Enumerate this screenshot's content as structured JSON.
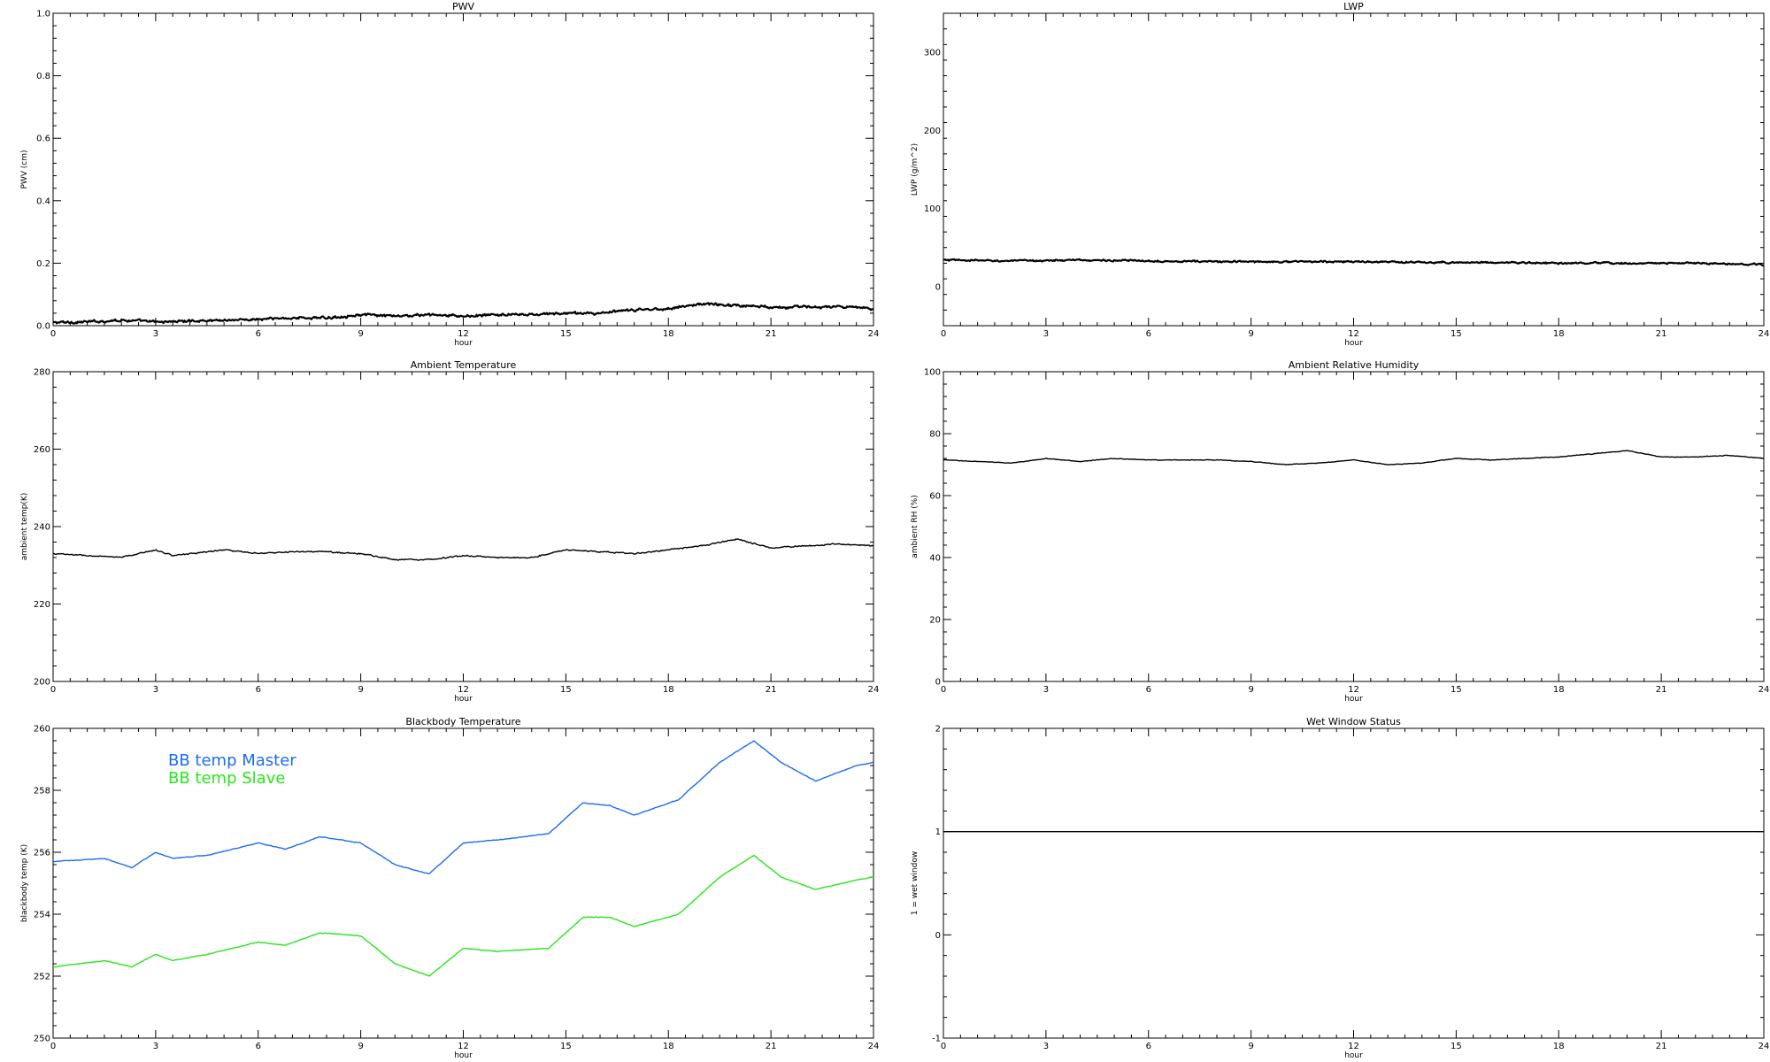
{
  "chart_data": [
    {
      "id": "pwv",
      "type": "line",
      "title": "PWV",
      "xlabel": "hour",
      "ylabel": "PWV (cm)",
      "xlim": [
        0,
        24
      ],
      "ylim": [
        0.0,
        1.0
      ],
      "xticks": [
        0,
        3,
        6,
        9,
        12,
        15,
        18,
        21,
        24
      ],
      "yticks": [
        0.0,
        0.2,
        0.4,
        0.6,
        0.8,
        1.0
      ],
      "ytick_labels": [
        "0.0",
        "0.2",
        "0.4",
        "0.6",
        "0.8",
        "1.0"
      ],
      "grid": false,
      "noise": 0.006,
      "series": [
        {
          "color": "#000000",
          "x": [
            0,
            1,
            2,
            3,
            4,
            5,
            6,
            7,
            8,
            9,
            10,
            11,
            12,
            13,
            14,
            15,
            16,
            17,
            18,
            19,
            20,
            21,
            22,
            23,
            24
          ],
          "y": [
            0.01,
            0.012,
            0.018,
            0.012,
            0.015,
            0.018,
            0.02,
            0.025,
            0.025,
            0.035,
            0.03,
            0.035,
            0.03,
            0.035,
            0.035,
            0.04,
            0.04,
            0.05,
            0.055,
            0.07,
            0.065,
            0.06,
            0.06,
            0.06,
            0.055
          ]
        }
      ]
    },
    {
      "id": "lwp",
      "type": "line",
      "title": "LWP",
      "xlabel": "hour",
      "ylabel": "LWP (g/m^2)",
      "xlim": [
        0,
        24
      ],
      "ylim": [
        -50,
        350
      ],
      "xticks": [
        0,
        3,
        6,
        9,
        12,
        15,
        18,
        21,
        24
      ],
      "yticks": [
        0,
        100,
        200,
        300
      ],
      "ytick_labels": [
        "0",
        "100",
        "200",
        "300"
      ],
      "grid": false,
      "noise": 1.6,
      "series": [
        {
          "color": "#000000",
          "x": [
            0,
            2,
            4,
            6,
            8,
            10,
            12,
            14,
            16,
            18,
            20,
            22,
            24
          ],
          "y": [
            34,
            33,
            34,
            33,
            32,
            32,
            32,
            31,
            31,
            30,
            30,
            30,
            28
          ]
        }
      ]
    },
    {
      "id": "ambient_temp",
      "type": "line",
      "title": "Ambient Temperature",
      "xlabel": "hour",
      "ylabel": "ambient temp(K)",
      "xlim": [
        0,
        24
      ],
      "ylim": [
        200,
        280
      ],
      "xticks": [
        0,
        3,
        6,
        9,
        12,
        15,
        18,
        21,
        24
      ],
      "yticks": [
        200,
        220,
        240,
        260,
        280
      ],
      "ytick_labels": [
        "200",
        "220",
        "240",
        "260",
        "280"
      ],
      "grid": false,
      "noise": 0.25,
      "series": [
        {
          "color": "#000000",
          "x": [
            0,
            1,
            2,
            3,
            3.5,
            4,
            5,
            6,
            7,
            8,
            9,
            10,
            11,
            12,
            13,
            14,
            15,
            16,
            17,
            18,
            19,
            20,
            21,
            22,
            23,
            24
          ],
          "y": [
            233,
            232.5,
            232,
            234,
            232.5,
            233,
            234,
            233,
            233.5,
            233.5,
            233,
            231.5,
            231.5,
            232.5,
            232,
            232,
            234,
            233.5,
            233,
            234,
            235,
            236.8,
            234.5,
            235,
            235.5,
            235
          ]
        }
      ]
    },
    {
      "id": "ambient_rh",
      "type": "line",
      "title": "Ambient Relative Humidity",
      "xlabel": "hour",
      "ylabel": "ambient RH (%)",
      "xlim": [
        0,
        24
      ],
      "ylim": [
        0,
        100
      ],
      "xticks": [
        0,
        3,
        6,
        9,
        12,
        15,
        18,
        21,
        24
      ],
      "yticks": [
        0,
        20,
        40,
        60,
        80,
        100
      ],
      "ytick_labels": [
        "0",
        "20",
        "40",
        "60",
        "80",
        "100"
      ],
      "grid": false,
      "noise": 0.15,
      "series": [
        {
          "color": "#000000",
          "x": [
            0,
            1,
            2,
            3,
            4,
            5,
            6,
            7,
            8,
            9,
            10,
            11,
            12,
            13,
            14,
            15,
            16,
            17,
            18,
            19,
            20,
            21,
            22,
            23,
            24
          ],
          "y": [
            71.5,
            71,
            70.5,
            72,
            71,
            72,
            71.5,
            71.5,
            71.5,
            71,
            70,
            70.5,
            71.5,
            70,
            70.5,
            72,
            71.5,
            72,
            72.5,
            73.5,
            74.5,
            72.5,
            72.5,
            73,
            72
          ]
        }
      ]
    },
    {
      "id": "blackbody_temp",
      "type": "line",
      "title": "Blackbody Temperature",
      "xlabel": "hour",
      "ylabel": "blackbody temp (K)",
      "xlim": [
        0,
        24
      ],
      "ylim": [
        250,
        260
      ],
      "xticks": [
        0,
        3,
        6,
        9,
        12,
        15,
        18,
        21,
        24
      ],
      "yticks": [
        250,
        252,
        254,
        256,
        258,
        260
      ],
      "ytick_labels": [
        "250",
        "252",
        "254",
        "256",
        "258",
        "260"
      ],
      "grid": false,
      "noise": 0.015,
      "legend": {
        "placement": "top-left"
      },
      "series": [
        {
          "name": "BB temp Master",
          "color": "#1c6df0",
          "x": [
            0,
            1.5,
            2.3,
            3,
            3.5,
            4.5,
            6,
            6.8,
            7.8,
            9,
            10,
            11,
            12,
            13,
            14.5,
            15.5,
            16.3,
            17,
            18.3,
            19.5,
            20.5,
            21.3,
            22.3,
            23.5,
            24
          ],
          "y": [
            255.7,
            255.8,
            255.5,
            256.0,
            255.8,
            255.9,
            256.3,
            256.1,
            256.5,
            256.3,
            255.6,
            255.3,
            256.3,
            256.4,
            256.6,
            257.6,
            257.5,
            257.2,
            257.7,
            258.9,
            259.6,
            258.9,
            258.3,
            258.8,
            258.9
          ]
        },
        {
          "name": "BB temp Slave",
          "color": "#28e61c",
          "x": [
            0,
            1.5,
            2.3,
            3,
            3.5,
            4.5,
            6,
            6.8,
            7.8,
            9,
            10,
            11,
            12,
            13,
            14.5,
            15.5,
            16.3,
            17,
            18.3,
            19.5,
            20.5,
            21.3,
            22.3,
            23.5,
            24
          ],
          "y": [
            252.3,
            252.5,
            252.3,
            252.7,
            252.5,
            252.7,
            253.1,
            253.0,
            253.4,
            253.3,
            252.4,
            252.0,
            252.9,
            252.8,
            252.9,
            253.9,
            253.9,
            253.6,
            254.0,
            255.2,
            255.9,
            255.2,
            254.8,
            255.1,
            255.2
          ]
        }
      ]
    },
    {
      "id": "wet_window",
      "type": "line",
      "title": "Wet Window Status",
      "xlabel": "hour",
      "ylabel": "1 = wet window",
      "xlim": [
        0,
        24
      ],
      "ylim": [
        -1,
        2
      ],
      "xticks": [
        0,
        3,
        6,
        9,
        12,
        15,
        18,
        21,
        24
      ],
      "yticks": [
        -1,
        0,
        1,
        2
      ],
      "ytick_labels": [
        "-1",
        "0",
        "1",
        "2"
      ],
      "grid": false,
      "noise": 0,
      "series": [
        {
          "color": "#000000",
          "x": [
            0,
            24
          ],
          "y": [
            1,
            1
          ]
        }
      ]
    }
  ]
}
